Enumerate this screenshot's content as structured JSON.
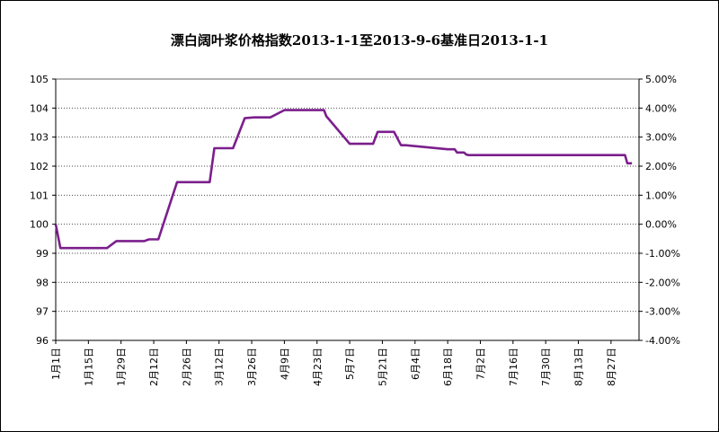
{
  "chart_data": {
    "type": "line",
    "title": "漂白阔叶浆价格指数2013-1-1至2013-9-6基准日2013-1-1",
    "ylim": [
      96,
      105
    ],
    "y_ticks": [
      "105",
      "104",
      "103",
      "102",
      "101",
      "100",
      "99",
      "98",
      "97",
      "96"
    ],
    "y2lim": [
      -4.0,
      5.0
    ],
    "y2_ticks": [
      "5.00%",
      "4.00%",
      "3.00%",
      "2.00%",
      "1.00%",
      "0.00%",
      "-1.00%",
      "-2.00%",
      "-3.00%",
      "-4.00%"
    ],
    "x_tick_labels": [
      "1月1日",
      "1月15日",
      "1月29日",
      "2月12日",
      "2月26日",
      "3月12日",
      "3月26日",
      "4月9日",
      "4月23日",
      "5月7日",
      "5月21日",
      "6月4日",
      "6月18日",
      "7月2日",
      "7月16日",
      "7月30日",
      "8月13日",
      "8月27日"
    ],
    "grid": true,
    "line_color": "#7B1F8C",
    "series": [
      {
        "x": [
          0,
          2,
          12,
          14,
          21,
          22,
          26,
          36,
          38,
          40,
          41,
          42,
          43,
          44,
          52,
          66,
          68,
          76,
          81,
          85,
          88,
          92,
          98,
          115,
          116,
          126,
          128,
          131,
          134,
          136,
          138,
          140,
          142,
          145,
          148,
          150,
          168,
          171,
          172,
          174,
          175,
          176,
          177,
          178,
          179,
          180,
          181,
          182,
          183,
          184,
          185,
          186,
          187,
          188,
          189,
          190,
          191,
          192,
          193,
          194,
          195,
          196,
          197,
          198,
          199,
          200,
          201,
          202,
          203,
          204,
          205,
          206,
          207,
          208,
          209,
          210,
          211,
          212,
          213,
          214,
          215,
          216,
          217,
          218,
          219,
          220,
          221,
          222,
          223,
          224,
          225,
          226,
          227,
          228,
          229,
          230,
          231,
          232,
          233,
          234,
          235,
          236,
          237,
          238,
          239,
          240,
          241,
          242,
          243,
          244,
          245,
          246,
          247
        ],
        "values": [
          100.0,
          99.18,
          99.18,
          99.18,
          99.18,
          99.18,
          99.42,
          99.42,
          99.42,
          99.48,
          99.48,
          99.48,
          99.48,
          99.48,
          101.45,
          101.45,
          102.62,
          102.62,
          103.65,
          103.68,
          103.68,
          103.68,
          103.93,
          103.93,
          103.72,
          102.77,
          102.77,
          102.77,
          102.77,
          102.77,
          103.18,
          103.18,
          103.18,
          103.18,
          102.72,
          102.72,
          102.58,
          102.58,
          102.47,
          102.47,
          102.47,
          102.4,
          102.38,
          102.38,
          102.38,
          102.38,
          102.38,
          102.38,
          102.38,
          102.38,
          102.38,
          102.38,
          102.38,
          102.38,
          102.38,
          102.38,
          102.38,
          102.38,
          102.38,
          102.38,
          102.38,
          102.38,
          102.38,
          102.38,
          102.38,
          102.38,
          102.38,
          102.38,
          102.38,
          102.38,
          102.38,
          102.38,
          102.38,
          102.38,
          102.38,
          102.38,
          102.38,
          102.38,
          102.38,
          102.38,
          102.38,
          102.38,
          102.38,
          102.38,
          102.38,
          102.38,
          102.38,
          102.38,
          102.38,
          102.38,
          102.38,
          102.38,
          102.38,
          102.38,
          102.38,
          102.38,
          102.38,
          102.38,
          102.38,
          102.38,
          102.38,
          102.38,
          102.38,
          102.38,
          102.38,
          102.38,
          102.38,
          102.38,
          102.38,
          102.38,
          102.1,
          102.1,
          102.1
        ]
      }
    ]
  }
}
